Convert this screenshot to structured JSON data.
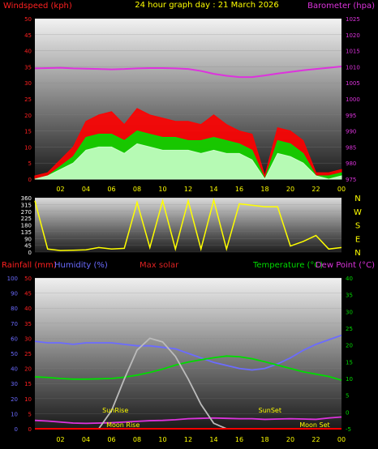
{
  "chart_data": [
    {
      "type": "line",
      "title": "24 hour graph day : 21 March 2026",
      "ylabel": "Windspeed (kph)",
      "ylabel_right": "Barometer (hpa)",
      "ylim": [
        0,
        50
      ],
      "ylim_right": [
        975,
        1025
      ],
      "xticks": [
        "02",
        "04",
        "06",
        "08",
        "10",
        "12",
        "14",
        "16",
        "18",
        "20",
        "22",
        "00"
      ],
      "yticks": [
        0,
        5,
        10,
        15,
        20,
        25,
        30,
        35,
        40,
        45,
        50
      ],
      "yticks_right": [
        975,
        980,
        985,
        990,
        995,
        1000,
        1005,
        1010,
        1015,
        1020,
        1025
      ],
      "x_hours": [
        0,
        1,
        2,
        3,
        4,
        5,
        6,
        7,
        8,
        9,
        10,
        11,
        12,
        13,
        14,
        15,
        16,
        17,
        18,
        19,
        20,
        21,
        22,
        23,
        24
      ],
      "series": [
        {
          "name": "Gust",
          "color": "#ff0000",
          "values": [
            1,
            2,
            6,
            10,
            18,
            20,
            21,
            17,
            22,
            20,
            19,
            18,
            18,
            17,
            20,
            17,
            15,
            14,
            1,
            16,
            15,
            12,
            2,
            2,
            3
          ]
        },
        {
          "name": "Average",
          "color": "#00dd00",
          "values": [
            0,
            1,
            4,
            7,
            13,
            14,
            14,
            12,
            15,
            14,
            13,
            13,
            12,
            12,
            13,
            12,
            11,
            9,
            0,
            12,
            11,
            8,
            1,
            1,
            2
          ]
        },
        {
          "name": "Speed",
          "color": "#c8ffc8",
          "values": [
            0,
            1,
            3,
            5,
            9,
            10,
            10,
            8,
            11,
            10,
            9,
            9,
            9,
            8,
            9,
            8,
            8,
            6,
            0,
            8,
            7,
            5,
            1,
            0,
            1
          ]
        },
        {
          "name": "Barometer",
          "color": "#dd33dd",
          "axis": "right",
          "values": [
            1009.5,
            1009.6,
            1009.7,
            1009.5,
            1009.4,
            1009.3,
            1009.2,
            1009.3,
            1009.5,
            1009.6,
            1009.6,
            1009.5,
            1009.3,
            1008.7,
            1007.8,
            1007.2,
            1006.8,
            1006.8,
            1007.3,
            1007.9,
            1008.4,
            1008.9,
            1009.3,
            1009.7,
            1010.1
          ]
        }
      ]
    },
    {
      "type": "line",
      "title": "",
      "ylabel": "",
      "ylim": [
        0,
        360
      ],
      "yticks": [
        0,
        45,
        90,
        135,
        180,
        225,
        270,
        315,
        360
      ],
      "compass": [
        "N",
        "W",
        "S",
        "E",
        "N"
      ],
      "x_hours": [
        0,
        1,
        2,
        3,
        4,
        5,
        6,
        7,
        8,
        9,
        10,
        11,
        12,
        13,
        14,
        15,
        16,
        17,
        18,
        19,
        20,
        21,
        22,
        23,
        24
      ],
      "series": [
        {
          "name": "Wind direction",
          "color": "#ffff00",
          "values": [
            340,
            20,
            10,
            12,
            15,
            30,
            20,
            25,
            330,
            30,
            340,
            20,
            340,
            20,
            345,
            20,
            320,
            310,
            300,
            300,
            40,
            70,
            110,
            20,
            30
          ]
        }
      ]
    },
    {
      "type": "line",
      "title": "",
      "legend_left": [
        "Rainfall (mm)",
        "Humidity (%)",
        "Max solar"
      ],
      "legend_right": [
        "Temperature (°C)",
        "Dew Point (°C)"
      ],
      "ylim_left_rain": [
        0,
        50
      ],
      "ylim_left_humidity": [
        0,
        100
      ],
      "ylim_right": [
        -5,
        40
      ],
      "yticks_rain": [
        0,
        5,
        10,
        15,
        20,
        25,
        30,
        35,
        40,
        45,
        50
      ],
      "yticks_humidity": [
        0,
        10,
        20,
        30,
        40,
        50,
        60,
        70,
        80,
        90,
        100
      ],
      "yticks_right": [
        -5,
        0,
        5,
        10,
        15,
        20,
        25,
        30,
        35,
        40
      ],
      "xticks": [
        "02",
        "04",
        "06",
        "08",
        "10",
        "12",
        "14",
        "16",
        "18",
        "20",
        "22",
        "00"
      ],
      "x_hours": [
        0,
        1,
        2,
        3,
        4,
        5,
        6,
        7,
        8,
        9,
        10,
        11,
        12,
        13,
        14,
        15,
        16,
        17,
        18,
        19,
        20,
        21,
        22,
        23,
        24
      ],
      "series": [
        {
          "name": "Humidity",
          "color": "#6b6bff",
          "axis": "humidity",
          "values": [
            58,
            57,
            57,
            56,
            57,
            57,
            57,
            56,
            55,
            55,
            54,
            53,
            50,
            47,
            44,
            42,
            40,
            39,
            40,
            43,
            47,
            52,
            56,
            59,
            62
          ]
        },
        {
          "name": "Temperature",
          "color": "#00dd00",
          "axis": "right",
          "values": [
            10.5,
            10.3,
            10.0,
            9.8,
            9.8,
            9.9,
            10.0,
            10.4,
            11.0,
            11.8,
            12.8,
            14.0,
            14.9,
            15.6,
            16.2,
            16.7,
            16.5,
            15.9,
            15.0,
            14.0,
            13.0,
            12.0,
            11.3,
            10.6,
            9.5
          ]
        },
        {
          "name": "Dew Point",
          "color": "#dd33dd",
          "axis": "right",
          "values": [
            -2.5,
            -2.7,
            -3.0,
            -3.3,
            -3.4,
            -3.3,
            -3.2,
            -3.0,
            -2.8,
            -2.6,
            -2.5,
            -2.3,
            -2.0,
            -1.9,
            -1.8,
            -1.9,
            -2.0,
            -2.0,
            -2.2,
            -2.1,
            -2.0,
            -2.1,
            -2.2,
            -1.8,
            -1.5
          ]
        },
        {
          "name": "Max solar",
          "color": "#bbbbbb",
          "axis": "custom",
          "values": [
            0,
            0,
            0,
            0,
            0,
            0,
            0.2,
            0.55,
            0.87,
            1.0,
            0.96,
            0.8,
            0.55,
            0.27,
            0.06,
            0,
            0,
            0,
            0,
            0,
            0,
            0,
            0,
            0,
            0
          ]
        },
        {
          "name": "Rainfall",
          "color": "#ff0000",
          "axis": "rain",
          "values": [
            0,
            0,
            0,
            0,
            0,
            0,
            0,
            0,
            0,
            0,
            0,
            0,
            0,
            0,
            0,
            0,
            0,
            0,
            0,
            0,
            0,
            0,
            0,
            0,
            0
          ]
        }
      ],
      "annotations": {
        "sunrise": {
          "label": "SunRise",
          "hour": 6.3
        },
        "sunset": {
          "label": "SunSet",
          "hour": 18.4
        },
        "moonrise": {
          "label": "Moon Rise",
          "hour": 6.9
        },
        "moonset": {
          "label": "Moon Set",
          "hour": 21.9
        }
      }
    }
  ]
}
